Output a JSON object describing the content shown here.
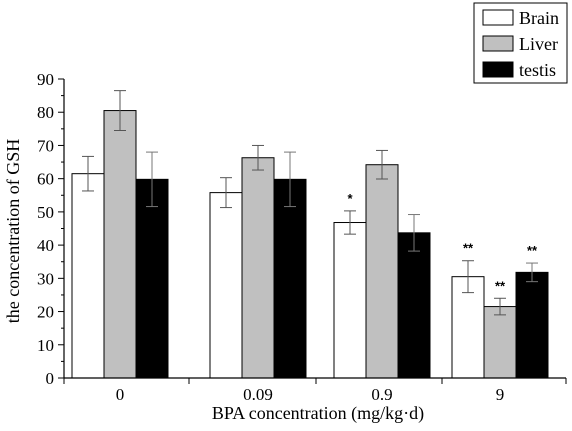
{
  "chart_data": {
    "type": "bar",
    "title": "",
    "xlabel": "BPA concentration (mg/kg·d)",
    "ylabel": "the concentration of GSH",
    "categories": [
      "0",
      "0.09",
      "0.9",
      "9"
    ],
    "ylim": [
      0,
      90
    ],
    "yticks": [
      "0",
      "10",
      "20",
      "30",
      "40",
      "50",
      "60",
      "70",
      "80",
      "90"
    ],
    "grid": false,
    "legend_position": "top-right",
    "series": [
      {
        "name": "Brain",
        "color": "#ffffff",
        "values": [
          61.5,
          55.8,
          46.8,
          30.5
        ],
        "errors": [
          5.2,
          4.5,
          3.5,
          4.8
        ],
        "annotations": [
          "",
          "",
          "*",
          "**"
        ]
      },
      {
        "name": "Liver",
        "color": "#c0c0c0",
        "values": [
          80.5,
          66.3,
          64.2,
          21.5
        ],
        "errors": [
          6.0,
          3.7,
          4.3,
          2.5
        ],
        "annotations": [
          "",
          "",
          "",
          "**"
        ]
      },
      {
        "name": "testis",
        "color": "#000000",
        "values": [
          59.8,
          59.8,
          43.7,
          31.8
        ],
        "errors": [
          8.2,
          8.2,
          5.5,
          2.8
        ],
        "annotations": [
          "",
          "",
          "",
          "**"
        ]
      }
    ]
  }
}
